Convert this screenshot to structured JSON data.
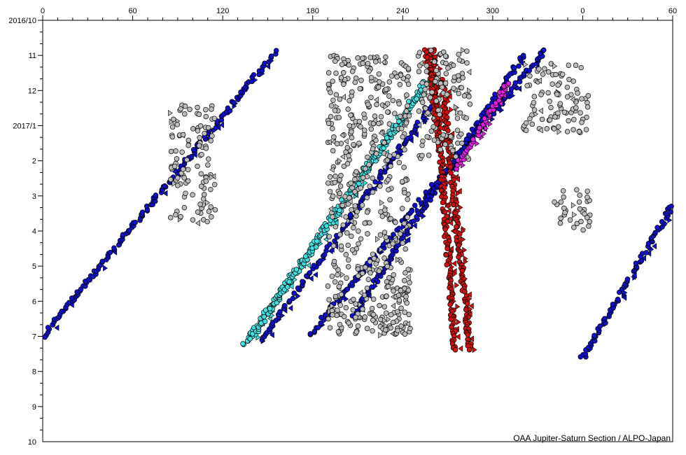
{
  "chart_data": {
    "type": "scatter",
    "title": "",
    "xlabel": "",
    "ylabel": "",
    "credit": "OAA Jupiter-Saturn Section / ALPO-Japan",
    "x_ticks": [
      "0",
      "60",
      "120",
      "180",
      "240",
      "300",
      "0",
      "60"
    ],
    "y_ticks": [
      "2016/10",
      "11",
      "12",
      "2017/1",
      "2",
      "3",
      "4",
      "5",
      "6",
      "7",
      "8",
      "9",
      "10"
    ],
    "grid": false,
    "colors": {
      "blue": "#1010c8",
      "cyan": "#40e0e0",
      "red": "#d01010",
      "magenta": "#e020e0",
      "gray": "#bbbbbb",
      "outline": "#000000"
    },
    "series": [
      {
        "key": "blue-left",
        "color": "#1010c8",
        "marker": "circle",
        "segments": [
          [
            [
              0,
              9.0
            ],
            [
              155,
              0.9
            ]
          ],
          [
            [
              0,
              9.0
            ],
            [
              -3,
              8.75
            ]
          ]
        ]
      },
      {
        "key": "blue-right-wrap",
        "color": "#1010c8",
        "marker": "circle",
        "segments": [
          [
            [
              360,
              9.6
            ],
            [
              425,
              4.9
            ]
          ]
        ]
      },
      {
        "key": "cyan-band",
        "color": "#40e0e0",
        "marker": "circle",
        "segments": [
          [
            [
              134,
              9.25
            ],
            [
              255,
              1.75
            ]
          ],
          [
            [
              139,
              9.05
            ],
            [
              258,
              1.7
            ]
          ]
        ]
      },
      {
        "key": "blue-band-a",
        "color": "#1010c8",
        "marker": "circle",
        "segments": [
          [
            [
              145,
              9.15
            ],
            [
              262,
              2.25
            ]
          ]
        ]
      },
      {
        "key": "blue-band-b",
        "color": "#1010c8",
        "marker": "circle",
        "segments": [
          [
            [
              178,
              8.95
            ],
            [
              335,
              0.85
            ]
          ]
        ]
      },
      {
        "key": "blue-band-c",
        "color": "#1010c8",
        "marker": "circle",
        "segments": [
          [
            [
              207,
              8.4
            ],
            [
              320,
              1.0
            ]
          ]
        ]
      },
      {
        "key": "red-spots",
        "color": "#d01010",
        "marker": "circle",
        "segments": [
          [
            [
              260,
              0.85
            ],
            [
              275,
              9.4
            ]
          ],
          [
            [
              266,
              1.7
            ],
            [
              285,
              9.4
            ]
          ],
          [
            [
              256,
              0.85
            ],
            [
              263,
              3.0
            ]
          ]
        ]
      },
      {
        "key": "magenta-spots",
        "color": "#e020e0",
        "marker": "circle",
        "segments": [
          [
            [
              276,
              4.2
            ],
            [
              310,
              1.8
            ]
          ]
        ]
      },
      {
        "key": "gray-scatter",
        "color": "#bbbbbb",
        "marker": "circle",
        "regions": [
          [
            85,
            115,
            2.4,
            5.8
          ],
          [
            190,
            245,
            1.0,
            9.0
          ],
          [
            250,
            285,
            0.8,
            4.0
          ],
          [
            225,
            245,
            7.0,
            9.0
          ],
          [
            320,
            365,
            1.2,
            3.2
          ],
          [
            340,
            365,
            4.8,
            6.0
          ]
        ]
      }
    ]
  }
}
